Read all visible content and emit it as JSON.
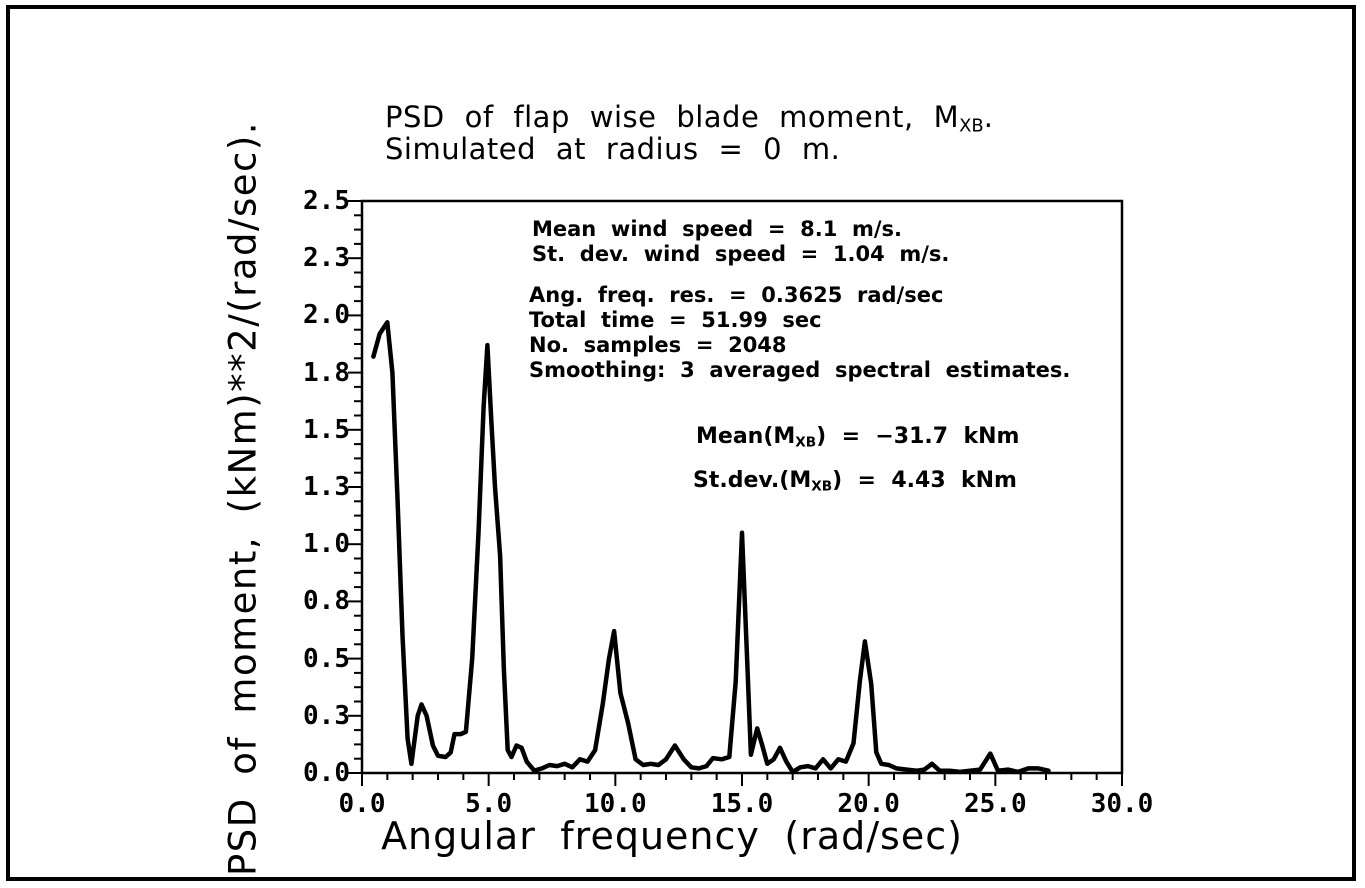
{
  "figure": {
    "background": "#ffffff",
    "border_color": "#000000",
    "title_line1_prefix": "PSD of flap wise blade moment, M",
    "title_line1_sub": "XB",
    "title_line1_suffix": ".",
    "title_line2": "Simulated at radius = 0 m."
  },
  "annotations": {
    "wind_block": [
      "Mean wind speed = 8.1 m/s.",
      "St. dev. wind speed = 1.04 m/s."
    ],
    "sim_block": [
      "Ang. freq. res. = 0.3625 rad/sec",
      "Total time = 51.99 sec",
      "No. samples = 2048",
      "Smoothing: 3 averaged spectral estimates."
    ],
    "mean_prefix": "Mean(M",
    "mean_sub": "XB",
    "mean_suffix": ") = −31.7 kNm",
    "stdev_prefix": "St.dev.(M",
    "stdev_sub": "XB",
    "stdev_suffix": ") = 4.43 kNm"
  },
  "chart_data": {
    "type": "line",
    "title": "PSD of flap wise blade moment, MXB. Simulated at radius = 0 m.",
    "xlabel": "Angular frequency (rad/sec)",
    "ylabel": "PSD of moment, (kNm)**2/(rad/sec).",
    "xlim": [
      0,
      30
    ],
    "ylim": [
      0,
      2.5
    ],
    "grid": false,
    "legend": "none",
    "line_color": "#000000",
    "line_width": 4.5,
    "x_major_ticks": [
      0,
      5,
      10,
      15,
      20,
      25,
      30
    ],
    "x_tick_labels": [
      "0.0",
      "5.0",
      "10.0",
      "15.0",
      "20.0",
      "25.0",
      "30.0"
    ],
    "x_minor_step": 1,
    "y_major_ticks": [
      0,
      0.25,
      0.5,
      0.75,
      1.0,
      1.25,
      1.5,
      1.75,
      2.0,
      2.25,
      2.5
    ],
    "y_tick_labels": [
      "0.0",
      "0.3",
      "0.5",
      "0.8",
      "1.0",
      "1.3",
      "1.5",
      "1.8",
      "2.0",
      "2.3",
      "2.5"
    ],
    "y_minor_step": 0.0625,
    "series": [
      {
        "name": "PSD of flap wise blade moment MXB",
        "x": [
          0.45,
          0.7,
          1.0,
          1.2,
          1.4,
          1.6,
          1.8,
          1.95,
          2.2,
          2.35,
          2.55,
          2.8,
          3.0,
          3.3,
          3.5,
          3.65,
          3.9,
          4.1,
          4.35,
          4.6,
          4.8,
          4.95,
          5.1,
          5.25,
          5.45,
          5.6,
          5.75,
          5.9,
          6.1,
          6.3,
          6.5,
          6.8,
          7.1,
          7.4,
          7.7,
          8.0,
          8.3,
          8.6,
          8.9,
          9.2,
          9.5,
          9.75,
          9.95,
          10.2,
          10.5,
          10.8,
          11.1,
          11.4,
          11.7,
          12.0,
          12.35,
          12.7,
          13.0,
          13.3,
          13.6,
          13.85,
          14.2,
          14.5,
          14.75,
          15.0,
          15.2,
          15.35,
          15.6,
          15.8,
          16.0,
          16.25,
          16.5,
          16.75,
          17.0,
          17.3,
          17.6,
          17.9,
          18.2,
          18.5,
          18.8,
          19.1,
          19.4,
          19.65,
          19.85,
          20.1,
          20.3,
          20.5,
          20.8,
          21.1,
          21.5,
          21.9,
          22.2,
          22.5,
          22.8,
          23.2,
          23.6,
          24.0,
          24.4,
          24.8,
          25.1,
          25.5,
          25.9,
          26.3,
          26.7,
          27.1
        ],
        "y": [
          1.82,
          1.92,
          1.97,
          1.75,
          1.2,
          0.6,
          0.15,
          0.04,
          0.25,
          0.3,
          0.25,
          0.12,
          0.075,
          0.07,
          0.09,
          0.17,
          0.17,
          0.18,
          0.5,
          1.05,
          1.6,
          1.87,
          1.55,
          1.25,
          0.95,
          0.45,
          0.1,
          0.07,
          0.12,
          0.11,
          0.05,
          0.01,
          0.02,
          0.035,
          0.03,
          0.04,
          0.025,
          0.06,
          0.05,
          0.1,
          0.3,
          0.5,
          0.62,
          0.35,
          0.22,
          0.06,
          0.035,
          0.04,
          0.035,
          0.06,
          0.12,
          0.06,
          0.025,
          0.02,
          0.03,
          0.065,
          0.06,
          0.07,
          0.4,
          1.05,
          0.5,
          0.08,
          0.195,
          0.12,
          0.04,
          0.06,
          0.11,
          0.05,
          0.005,
          0.025,
          0.03,
          0.02,
          0.06,
          0.02,
          0.06,
          0.05,
          0.13,
          0.4,
          0.575,
          0.39,
          0.09,
          0.04,
          0.035,
          0.02,
          0.015,
          0.01,
          0.015,
          0.04,
          0.01,
          0.01,
          0.005,
          0.01,
          0.015,
          0.085,
          0.01,
          0.015,
          0.005,
          0.02,
          0.02,
          0.01
        ]
      }
    ]
  }
}
